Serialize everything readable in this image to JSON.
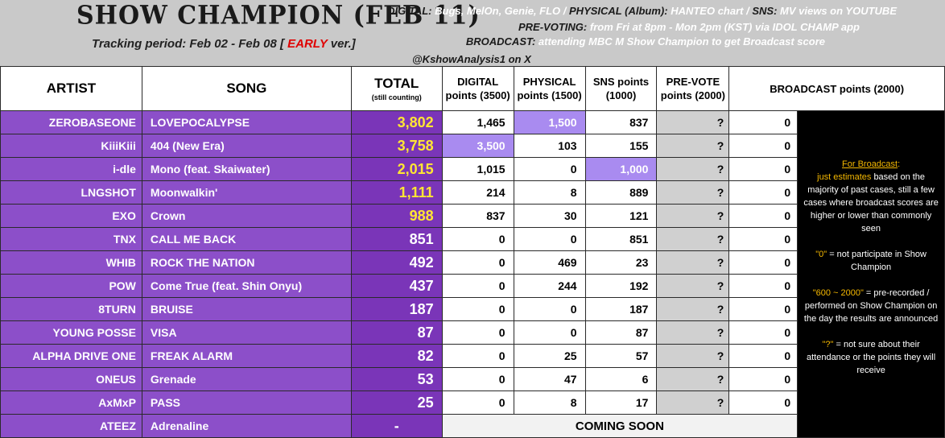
{
  "header": {
    "title": "SHOW CHAMPION (FEB 11)",
    "tracking_prefix": "Tracking period: Feb 02 - Feb 08 [",
    "tracking_early": "EARLY",
    "tracking_suffix": "ver.]",
    "line1_digital_key": "DIGITAL:",
    "line1_digital_val": "Bugs, MelOn, Genie, FLO /",
    "line1_physical_key": "PHYSICAL",
    "line1_album": "(Album):",
    "line1_hanteo": "HANTEO chart /",
    "line1_sns_key": "SNS:",
    "line1_sns_val": "MV views on YOUTUBE",
    "line2_key": "PRE-VOTING:",
    "line2_val": "from Fri at 8pm - Mon 2pm (KST) via IDOL CHAMP app",
    "line3_key": "BROADCAST:",
    "line3_val": "attending MBC M Show Champion to get Broadcast score",
    "handle": "@KshowAnalysis1 on X"
  },
  "columns": {
    "artist": "ARTIST",
    "song": "SONG",
    "total": "TOTAL",
    "total_sub": "(still counting)",
    "digital": "DIGITAL points (3500)",
    "physical": "PHYSICAL points (1500)",
    "sns": "SNS points (1000)",
    "prevote": "PRE-VOTE points (2000)",
    "broadcast": "BROADCAST points (2000)"
  },
  "rows": [
    {
      "artist": "ZEROBASEONE",
      "song": "LOVEPOCALYPSE",
      "total": "3,802",
      "digital": "1,465",
      "physical": "1,500",
      "sns": "837",
      "prevote": "?",
      "broadcast": "0"
    },
    {
      "artist": "KiiiKiii",
      "song": "404 (New Era)",
      "total": "3,758",
      "digital": "3,500",
      "physical": "103",
      "sns": "155",
      "prevote": "?",
      "broadcast": "0"
    },
    {
      "artist": "i-dle",
      "song": "Mono (feat. Skaiwater)",
      "total": "2,015",
      "digital": "1,015",
      "physical": "0",
      "sns": "1,000",
      "prevote": "?",
      "broadcast": "0"
    },
    {
      "artist": "LNGSHOT",
      "song": "Moonwalkin'",
      "total": "1,111",
      "digital": "214",
      "physical": "8",
      "sns": "889",
      "prevote": "?",
      "broadcast": "0"
    },
    {
      "artist": "EXO",
      "song": "Crown",
      "total": "988",
      "digital": "837",
      "physical": "30",
      "sns": "121",
      "prevote": "?",
      "broadcast": "0"
    },
    {
      "artist": "TNX",
      "song": "CALL ME BACK",
      "total": "851",
      "digital": "0",
      "physical": "0",
      "sns": "851",
      "prevote": "?",
      "broadcast": "0"
    },
    {
      "artist": "WHIB",
      "song": "ROCK THE NATION",
      "total": "492",
      "digital": "0",
      "physical": "469",
      "sns": "23",
      "prevote": "?",
      "broadcast": "0"
    },
    {
      "artist": "POW",
      "song": "Come True (feat. Shin Onyu)",
      "total": "437",
      "digital": "0",
      "physical": "244",
      "sns": "192",
      "prevote": "?",
      "broadcast": "0"
    },
    {
      "artist": "8TURN",
      "song": "BRUISE",
      "total": "187",
      "digital": "0",
      "physical": "0",
      "sns": "187",
      "prevote": "?",
      "broadcast": "0"
    },
    {
      "artist": "YOUNG POSSE",
      "song": "VISA",
      "total": "87",
      "digital": "0",
      "physical": "0",
      "sns": "87",
      "prevote": "?",
      "broadcast": "0"
    },
    {
      "artist": "ALPHA DRIVE ONE",
      "song": "FREAK ALARM",
      "total": "82",
      "digital": "0",
      "physical": "25",
      "sns": "57",
      "prevote": "?",
      "broadcast": "0"
    },
    {
      "artist": "ONEUS",
      "song": "Grenade",
      "total": "53",
      "digital": "0",
      "physical": "47",
      "sns": "6",
      "prevote": "?",
      "broadcast": "0"
    },
    {
      "artist": "AxMxP",
      "song": "PASS",
      "total": "25",
      "digital": "0",
      "physical": "8",
      "sns": "17",
      "prevote": "?",
      "broadcast": "0"
    }
  ],
  "last_row": {
    "artist": "ATEEZ",
    "song": "Adrenaline",
    "total": "-",
    "status": "COMING SOON"
  },
  "note": {
    "title": "For Broadcast",
    "title_colon": ":",
    "p1_hl": "just estimates",
    "p1_rest": "based on the majority of past cases, still a few cases where broadcast scores are higher or lower than commonly seen",
    "p2_hl": "\"0\"",
    "p2_rest": "= not participate in Show Champion",
    "p3_hl": "\"600 ~ 2000\"",
    "p3_rest": "= pre-recorded / performed on Show Champion on the day the results are announced",
    "p4_hl": "\"?\"",
    "p4_rest": "= not sure about their attendance or the points they will receive"
  },
  "colors": {
    "purple": "#8c4fc9",
    "total_purple": "#7a35b8",
    "highlight": "#a98bf0",
    "gold": "#ffe633",
    "orange": "#f5b800",
    "red": "#e00000"
  }
}
